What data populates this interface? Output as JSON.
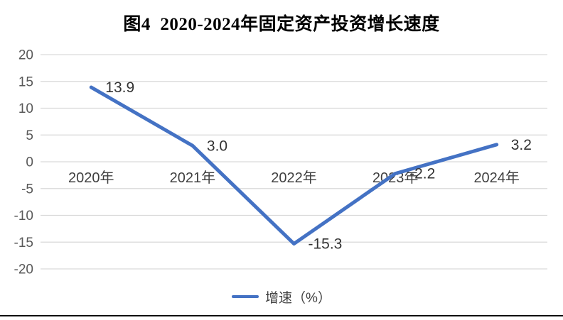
{
  "title": "图4  2020-2024年固定资产投资增长速度",
  "legend": {
    "label": "增速（%）"
  },
  "colors": {
    "line": "#4472C4",
    "gridline": "#D9D9D9",
    "tick_label": "#595959",
    "category_label": "#404040",
    "data_label": "#333333",
    "title": "#000000",
    "footer_rule": "#000000",
    "background": "#FFFFFF"
  },
  "chart_data": {
    "type": "line",
    "title": "图4 2020-2024年固定资产投资增长速度",
    "categories": [
      "2020年",
      "2021年",
      "2022年",
      "2023年",
      "2024年"
    ],
    "series": [
      {
        "name": "增速（%）",
        "values": [
          13.9,
          3.0,
          -15.3,
          -2.2,
          3.2
        ]
      }
    ],
    "data_labels": [
      "13.9",
      "3.0",
      "-15.3",
      "-2.2",
      "3.2"
    ],
    "y_ticks": [
      20,
      15,
      10,
      5,
      0,
      -5,
      -10,
      -15,
      -20
    ],
    "ylim": [
      -20,
      20
    ],
    "xlabel": "",
    "ylabel": "",
    "grid": true,
    "legend_position": "bottom"
  }
}
